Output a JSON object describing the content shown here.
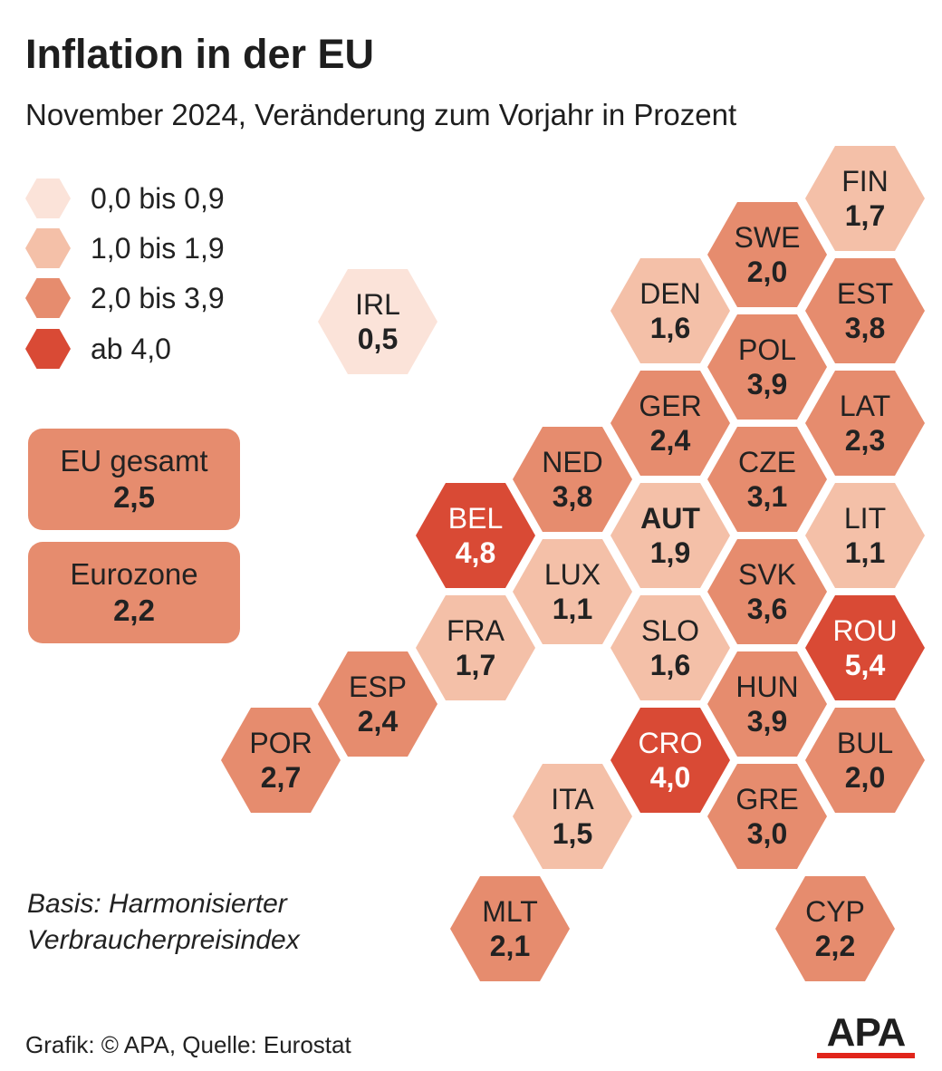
{
  "title": "Inflation in der EU",
  "subtitle": "November 2024, Veränderung zum Vorjahr in Prozent",
  "legend": [
    {
      "label": "0,0 bis 0,9",
      "color": "#fbe3d9"
    },
    {
      "label": "1,0 bis 1,9",
      "color": "#f4c0a8"
    },
    {
      "label": "2,0 bis 3,9",
      "color": "#e68c6e"
    },
    {
      "label": "ab 4,0",
      "color": "#d94a35"
    }
  ],
  "summary": [
    {
      "label": "EU gesamt",
      "value": "2,5"
    },
    {
      "label": "Eurozone",
      "value": "2,2"
    }
  ],
  "countries": [
    {
      "code": "FIN",
      "value": "1,7"
    },
    {
      "code": "SWE",
      "value": "2,0"
    },
    {
      "code": "DEN",
      "value": "1,6"
    },
    {
      "code": "EST",
      "value": "3,8"
    },
    {
      "code": "IRL",
      "value": "0,5"
    },
    {
      "code": "POL",
      "value": "3,9"
    },
    {
      "code": "GER",
      "value": "2,4"
    },
    {
      "code": "LAT",
      "value": "2,3"
    },
    {
      "code": "NED",
      "value": "3,8"
    },
    {
      "code": "CZE",
      "value": "3,1"
    },
    {
      "code": "BEL",
      "value": "4,8"
    },
    {
      "code": "AUT",
      "value": "1,9"
    },
    {
      "code": "LIT",
      "value": "1,1"
    },
    {
      "code": "LUX",
      "value": "1,1"
    },
    {
      "code": "SVK",
      "value": "3,6"
    },
    {
      "code": "FRA",
      "value": "1,7"
    },
    {
      "code": "SLO",
      "value": "1,6"
    },
    {
      "code": "ROU",
      "value": "5,4"
    },
    {
      "code": "ESP",
      "value": "2,4"
    },
    {
      "code": "HUN",
      "value": "3,9"
    },
    {
      "code": "POR",
      "value": "2,7"
    },
    {
      "code": "CRO",
      "value": "4,0"
    },
    {
      "code": "BUL",
      "value": "2,0"
    },
    {
      "code": "ITA",
      "value": "1,5"
    },
    {
      "code": "GRE",
      "value": "3,0"
    },
    {
      "code": "MLT",
      "value": "2,1"
    },
    {
      "code": "CYP",
      "value": "2,2"
    }
  ],
  "basis_line1": "Basis: Harmonisierter",
  "basis_line2": "Verbraucherpreisindex",
  "footer": "Grafik: © APA, Quelle: Eurostat",
  "logo": "APA"
}
